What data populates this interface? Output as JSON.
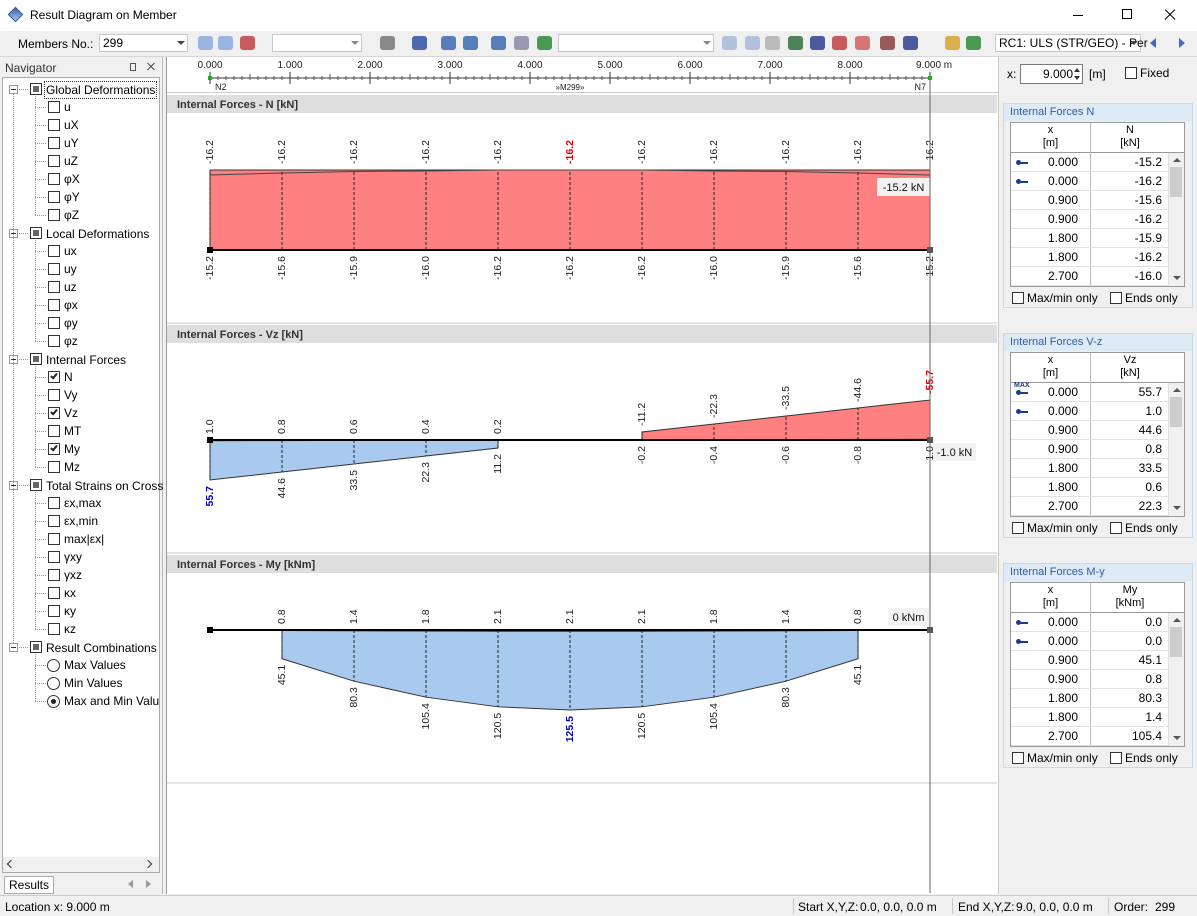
{
  "window": {
    "title": "Result Diagram on Member"
  },
  "toolbar": {
    "members_label": "Members No.:",
    "member_no": "299",
    "load_case": "RC1: ULS (STR/GEO) - Per"
  },
  "navigator": {
    "title": "Navigator",
    "tab": "Results",
    "groups": [
      {
        "label": "Global Deformations",
        "items": [
          {
            "label": "u"
          },
          {
            "label": "uX"
          },
          {
            "label": "uY"
          },
          {
            "label": "uZ"
          },
          {
            "label": "φX"
          },
          {
            "label": "φY"
          },
          {
            "label": "φZ"
          }
        ]
      },
      {
        "label": "Local Deformations",
        "items": [
          {
            "label": "ux"
          },
          {
            "label": "uy"
          },
          {
            "label": "uz"
          },
          {
            "label": "φx"
          },
          {
            "label": "φy"
          },
          {
            "label": "φz"
          }
        ]
      },
      {
        "label": "Internal Forces",
        "items": [
          {
            "label": "N",
            "checked": true
          },
          {
            "label": "Vy"
          },
          {
            "label": "Vz",
            "checked": true
          },
          {
            "label": "MT"
          },
          {
            "label": "My",
            "checked": true
          },
          {
            "label": "Mz"
          }
        ]
      },
      {
        "label": "Total Strains on Cross",
        "items": [
          {
            "label": "εx,max"
          },
          {
            "label": "εx,min"
          },
          {
            "label": "max|εx|"
          },
          {
            "label": "γxy"
          },
          {
            "label": "γxz"
          },
          {
            "label": "κx"
          },
          {
            "label": "κy"
          },
          {
            "label": "κz"
          }
        ]
      },
      {
        "label": "Result Combinations",
        "radio": true,
        "items": [
          {
            "label": "Max Values"
          },
          {
            "label": "Min Values"
          },
          {
            "label": "Max and Min Valu",
            "checked": true
          }
        ]
      }
    ]
  },
  "ruler": {
    "xlim": [
      0,
      9
    ],
    "xticks": [
      {
        "value": 0,
        "label": "0.000"
      },
      {
        "value": 1,
        "label": "1.000"
      },
      {
        "value": 2,
        "label": "2.000"
      },
      {
        "value": 3,
        "label": "3.000"
      },
      {
        "value": 4,
        "label": "4.000"
      },
      {
        "value": 5,
        "label": "5.000"
      },
      {
        "value": 6,
        "label": "6.000"
      },
      {
        "value": 7,
        "label": "7.000"
      },
      {
        "value": 8,
        "label": "8.000"
      },
      {
        "value": 9,
        "label": "9.000 m"
      }
    ],
    "start_node": "N2",
    "member": "»M299»",
    "end_node": "N7"
  },
  "cursor_x": 9,
  "location": {
    "label": "x:",
    "value": "9.000",
    "unit": "[m]",
    "fixed": "Fixed"
  },
  "colors": {
    "positive_fill": "#a9c9ee",
    "negative_fill": "#ff8080",
    "positive_extreme": "#0000c8",
    "negative_extreme": "#e00000"
  },
  "diagrams": [
    {
      "type": "line",
      "title": "Internal Forces - N [kN]",
      "result_label": "-15.2 kN",
      "x": [
        0,
        0.9,
        1.8,
        2.7,
        3.6,
        4.5,
        5.4,
        6.3,
        7.2,
        8.1,
        9
      ],
      "series": [
        {
          "values": [
            -16.2,
            -16.2,
            -16.2,
            -16.2,
            -16.2,
            -16.2,
            -16.2,
            -16.2,
            -16.2,
            -16.2,
            -16.2
          ],
          "value_labels": [
            "-16.2",
            "-16.2",
            "-16.2",
            "-16.2",
            "-16.2",
            "-16.2",
            "-16.2",
            "-16.2",
            "-16.2",
            "-16.2",
            "-16.2"
          ]
        },
        {
          "values": [
            -15.2,
            -15.6,
            -15.9,
            -16.0,
            -16.2,
            -16.2,
            -16.2,
            -16.0,
            -15.9,
            -15.6,
            -15.2
          ],
          "value_labels": [
            "-15.2",
            "-15.6",
            "-15.9",
            "-16.0",
            "-16.2",
            "-16.2",
            "-16.2",
            "-16.0",
            "-15.9",
            "-15.6",
            "-15.2"
          ]
        }
      ]
    },
    {
      "type": "line",
      "title": "Internal Forces - Vz [kN]",
      "result_label": "-1.0 kN",
      "x": [
        0,
        0.9,
        1.8,
        2.7,
        3.6,
        4.5,
        5.4,
        6.3,
        7.2,
        8.1,
        9
      ],
      "series": [
        {
          "values": [
            55.7,
            44.6,
            33.5,
            22.3,
            11.2,
            null,
            -11.2,
            -22.3,
            -33.5,
            -44.6,
            -55.7
          ],
          "value_labels": [
            "55.7",
            "44.6",
            "33.5",
            "22.3",
            "11.2",
            null,
            "-11.2",
            "-22.3",
            "-33.5",
            "-44.6",
            "-55.7"
          ]
        },
        {
          "values": [
            1.0,
            0.8,
            0.6,
            0.4,
            0.2,
            null,
            -0.2,
            -0.4,
            -0.6,
            -0.8,
            -1.0
          ],
          "value_labels": [
            "1.0",
            "0.8",
            "0.6",
            "0.4",
            "0.2",
            null,
            "-0.2",
            "-0.4",
            "-0.6",
            "-0.8",
            "-1.0"
          ]
        }
      ]
    },
    {
      "type": "line",
      "title": "Internal Forces - My [kNm]",
      "result_label": "0 kNm",
      "x": [
        0,
        0.9,
        1.8,
        2.7,
        3.6,
        4.5,
        5.4,
        6.3,
        7.2,
        8.1,
        9
      ],
      "series": [
        {
          "values": [
            null,
            45.1,
            80.3,
            105.4,
            120.5,
            125.5,
            120.5,
            105.4,
            80.3,
            45.1,
            null
          ],
          "value_labels": [
            null,
            "45.1",
            "80.3",
            "105.4",
            "120.5",
            "125.5",
            "120.5",
            "105.4",
            "80.3",
            "45.1",
            null
          ]
        },
        {
          "values": [
            null,
            0.8,
            1.4,
            1.8,
            2.1,
            2.1,
            2.1,
            1.8,
            1.4,
            0.8,
            null
          ],
          "value_labels": [
            null,
            "0.8",
            "1.4",
            "1.8",
            "2.1",
            "2.1",
            "2.1",
            "1.8",
            "1.4",
            "0.8",
            null
          ]
        }
      ]
    }
  ],
  "tables": [
    {
      "title": "Internal Forces N",
      "x_name": "x",
      "x_unit": "[m]",
      "v_name": "N",
      "v_unit": "[kN]",
      "max_only": "Max/min only",
      "ends_only": "Ends only",
      "rows": [
        {
          "x": "0.000",
          "v": "-15.2"
        },
        {
          "x": "0.000",
          "v": "-16.2"
        },
        {
          "x": "0.900",
          "v": "-15.6"
        },
        {
          "x": "0.900",
          "v": "-16.2"
        },
        {
          "x": "1.800",
          "v": "-15.9"
        },
        {
          "x": "1.800",
          "v": "-16.2"
        },
        {
          "x": "2.700",
          "v": "-16.0"
        }
      ]
    },
    {
      "title": "Internal Forces V-z",
      "x_name": "x",
      "x_unit": "[m]",
      "v_name": "Vz",
      "v_unit": "[kN]",
      "max_only": "Max/min only",
      "ends_only": "Ends only",
      "rows": [
        {
          "x": "0.000",
          "v": "55.7",
          "tag": "MAX"
        },
        {
          "x": "0.000",
          "v": "1.0"
        },
        {
          "x": "0.900",
          "v": "44.6"
        },
        {
          "x": "0.900",
          "v": "0.8"
        },
        {
          "x": "1.800",
          "v": "33.5"
        },
        {
          "x": "1.800",
          "v": "0.6"
        },
        {
          "x": "2.700",
          "v": "22.3"
        }
      ]
    },
    {
      "title": "Internal Forces M-y",
      "x_name": "x",
      "x_unit": "[m]",
      "v_name": "My",
      "v_unit": "[kNm]",
      "max_only": "Max/min only",
      "ends_only": "Ends only",
      "rows": [
        {
          "x": "0.000",
          "v": "0.0"
        },
        {
          "x": "0.000",
          "v": "0.0"
        },
        {
          "x": "0.900",
          "v": "45.1"
        },
        {
          "x": "0.900",
          "v": "0.8"
        },
        {
          "x": "1.800",
          "v": "80.3"
        },
        {
          "x": "1.800",
          "v": "1.4"
        },
        {
          "x": "2.700",
          "v": "105.4"
        }
      ]
    }
  ],
  "status": {
    "location": "Location x: 9.000 m",
    "start_label": "Start X,Y,Z:",
    "start": "0.0, 0.0, 0.0 m",
    "end_label": "End X,Y,Z:",
    "end": "9.0, 0.0, 0.0 m",
    "order_label": "Order:",
    "order": "299"
  }
}
